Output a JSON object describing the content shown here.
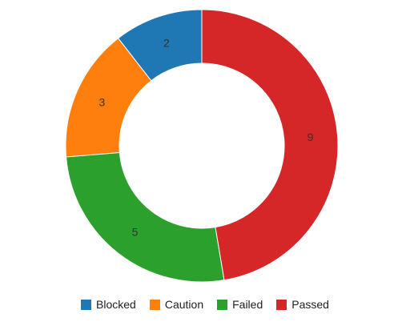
{
  "chart_data": {
    "type": "pie",
    "variant": "donut",
    "categories": [
      "Blocked",
      "Caution",
      "Failed",
      "Passed"
    ],
    "values": [
      2,
      3,
      5,
      9
    ],
    "colors": [
      "#1f77b4",
      "#ff7f0e",
      "#2ca02c",
      "#d62728"
    ],
    "data_labels": [
      "2",
      "3",
      "5",
      "9"
    ],
    "legend": {
      "position": "bottom",
      "items": [
        {
          "label": "Blocked",
          "color": "#1f77b4"
        },
        {
          "label": "Caution",
          "color": "#ff7f0e"
        },
        {
          "label": "Failed",
          "color": "#2ca02c"
        },
        {
          "label": "Passed",
          "color": "#d62728"
        }
      ]
    },
    "start": "top",
    "direction": "counterclockwise"
  }
}
